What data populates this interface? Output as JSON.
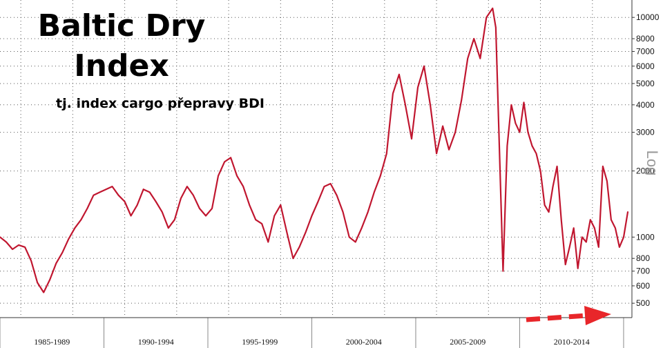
{
  "chart_data": {
    "type": "line",
    "title_lines": [
      "Baltic Dry",
      "Index"
    ],
    "subtitle": "tj. index cargo přepravy BDI",
    "scale_label": "Log",
    "y_scale": "log",
    "ylim": [
      430,
      12000
    ],
    "y_ticks": [
      500,
      600,
      700,
      800,
      1000,
      2000,
      3000,
      4000,
      5000,
      6000,
      7000,
      8000,
      10000
    ],
    "x_periods": [
      "1985-1989",
      "1990-1994",
      "1995-1999",
      "2000-2004",
      "2005-2009",
      "2010-2014"
    ],
    "grid": true,
    "line_color": "#c0162f",
    "arrow_color": "#e8262a",
    "series": [
      {
        "x": [
          1985.0,
          1985.3,
          1985.6,
          1985.9,
          1986.2,
          1986.5,
          1986.8,
          1987.1,
          1987.4,
          1987.7,
          1988.0,
          1988.3,
          1988.6,
          1988.9,
          1989.2,
          1989.5,
          1989.8,
          1990.1,
          1990.4,
          1990.7,
          1991.0,
          1991.3,
          1991.6,
          1991.9,
          1992.2,
          1992.5,
          1992.8,
          1993.1,
          1993.4,
          1993.7,
          1994.0,
          1994.3,
          1994.6,
          1994.9,
          1995.2,
          1995.5,
          1995.8,
          1996.1,
          1996.4,
          1996.7,
          1997.0,
          1997.3,
          1997.6,
          1997.9,
          1998.2,
          1998.5,
          1998.8,
          1999.1,
          1999.4,
          1999.7,
          2000.0,
          2000.3,
          2000.6,
          2000.9,
          2001.2,
          2001.5,
          2001.8,
          2002.1,
          2002.4,
          2002.7,
          2003.0,
          2003.3,
          2003.6,
          2003.9,
          2004.2,
          2004.5,
          2004.8,
          2005.1,
          2005.4,
          2005.7,
          2006.0,
          2006.3,
          2006.6,
          2006.9,
          2007.2,
          2007.5,
          2007.8,
          2008.1,
          2008.4,
          2008.7,
          2008.85,
          2009.0,
          2009.2,
          2009.4,
          2009.6,
          2009.8,
          2010.0,
          2010.2,
          2010.4,
          2010.6,
          2010.8,
          2011.0,
          2011.2,
          2011.4,
          2011.6,
          2011.8,
          2012.0,
          2012.2,
          2012.4,
          2012.6,
          2012.8,
          2013.0,
          2013.2,
          2013.4,
          2013.6,
          2013.8,
          2014.0,
          2014.2,
          2014.4,
          2014.6,
          2014.8,
          2015.0,
          2015.2
        ],
        "y": [
          1000,
          950,
          880,
          920,
          900,
          780,
          620,
          560,
          640,
          760,
          850,
          980,
          1100,
          1200,
          1350,
          1550,
          1600,
          1650,
          1700,
          1550,
          1450,
          1250,
          1400,
          1650,
          1600,
          1450,
          1300,
          1100,
          1200,
          1500,
          1700,
          1550,
          1350,
          1250,
          1350,
          1900,
          2200,
          2300,
          1900,
          1700,
          1400,
          1200,
          1150,
          950,
          1250,
          1400,
          1050,
          800,
          900,
          1050,
          1250,
          1450,
          1700,
          1750,
          1550,
          1300,
          1000,
          950,
          1100,
          1300,
          1600,
          1900,
          2400,
          4500,
          5500,
          4000,
          2800,
          4800,
          6000,
          4000,
          2400,
          3200,
          2500,
          3000,
          4200,
          6500,
          8000,
          6500,
          10000,
          11000,
          9000,
          3000,
          700,
          2600,
          4000,
          3300,
          3000,
          4100,
          3000,
          2600,
          2400,
          2000,
          1400,
          1300,
          1700,
          2100,
          1200,
          750,
          900,
          1100,
          720,
          1000,
          950,
          1200,
          1100,
          900,
          2100,
          1800,
          1200,
          1100,
          900,
          1000,
          1300
        ]
      }
    ]
  }
}
